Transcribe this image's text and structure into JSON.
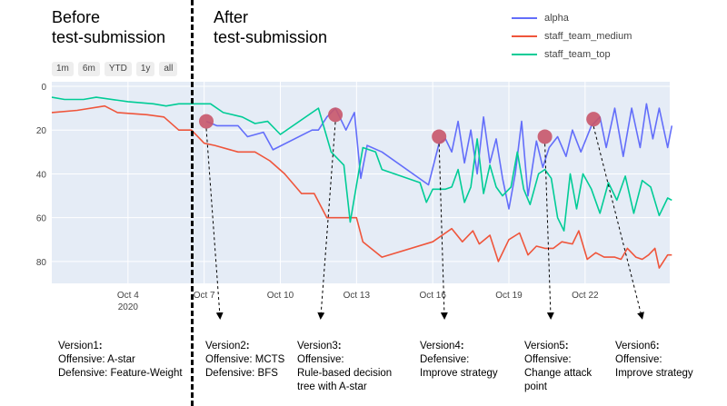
{
  "header": {
    "before": "Before\ntest-submission",
    "after": "After\ntest-submission"
  },
  "range_buttons": [
    "1m",
    "6m",
    "YTD",
    "1y",
    "all"
  ],
  "legend": [
    {
      "name": "alpha",
      "color": "#636efa"
    },
    {
      "name": "staff_team_medium",
      "color": "#ef553b"
    },
    {
      "name": "staff_team_top",
      "color": "#00cc96"
    }
  ],
  "chart_data": {
    "type": "line",
    "title": "",
    "xlabel": "",
    "ylabel": "",
    "yaxis_reversed": true,
    "ylim": [
      0,
      90
    ],
    "xlim": [
      "2020-10-01",
      "2020-10-25"
    ],
    "xticks": [
      {
        "date": "2020-10-04",
        "label": "Oct 4",
        "sublabel": "2020"
      },
      {
        "date": "2020-10-07",
        "label": "Oct 7"
      },
      {
        "date": "2020-10-10",
        "label": "Oct 10"
      },
      {
        "date": "2020-10-13",
        "label": "Oct 13"
      },
      {
        "date": "2020-10-16",
        "label": "Oct 16"
      },
      {
        "date": "2020-10-19",
        "label": "Oct 19"
      },
      {
        "date": "2020-10-22",
        "label": "Oct 22"
      }
    ],
    "yticks": [
      0,
      20,
      40,
      60,
      80
    ],
    "grid": true,
    "legend_position": "top-right",
    "series": [
      {
        "name": "alpha",
        "color": "#636efa",
        "points": [
          [
            "2020-10-07 02:00",
            16
          ],
          [
            "2020-10-07 12:00",
            18
          ],
          [
            "2020-10-08 08:00",
            18
          ],
          [
            "2020-10-08 17:00",
            23
          ],
          [
            "2020-10-09 08:00",
            21
          ],
          [
            "2020-10-09 17:00",
            29
          ],
          [
            "2020-10-11 06:00",
            20
          ],
          [
            "2020-10-11 12:00",
            20
          ],
          [
            "2020-10-11 20:00",
            14
          ],
          [
            "2020-10-12 04:00",
            10
          ],
          [
            "2020-10-12 14:00",
            20
          ],
          [
            "2020-10-12 22:00",
            12
          ],
          [
            "2020-10-13 04:00",
            42
          ],
          [
            "2020-10-13 10:00",
            27
          ],
          [
            "2020-10-14 00:00",
            30
          ],
          [
            "2020-10-15 20:00",
            45
          ],
          [
            "2020-10-16 06:00",
            26
          ],
          [
            "2020-10-16 12:00",
            24
          ],
          [
            "2020-10-16 18:00",
            30
          ],
          [
            "2020-10-17 00:00",
            16
          ],
          [
            "2020-10-17 06:00",
            35
          ],
          [
            "2020-10-17 12:00",
            20
          ],
          [
            "2020-10-17 18:00",
            40
          ],
          [
            "2020-10-18 00:00",
            14
          ],
          [
            "2020-10-18 06:00",
            35
          ],
          [
            "2020-10-18 12:00",
            24
          ],
          [
            "2020-10-18 18:00",
            42
          ],
          [
            "2020-10-19 00:00",
            56
          ],
          [
            "2020-10-19 06:00",
            40
          ],
          [
            "2020-10-19 12:00",
            16
          ],
          [
            "2020-10-19 18:00",
            50
          ],
          [
            "2020-10-20 02:00",
            25
          ],
          [
            "2020-10-20 08:00",
            37
          ],
          [
            "2020-10-20 14:00",
            28
          ],
          [
            "2020-10-20 22:00",
            23
          ],
          [
            "2020-10-21 06:00",
            32
          ],
          [
            "2020-10-21 12:00",
            20
          ],
          [
            "2020-10-21 20:00",
            30
          ],
          [
            "2020-10-22 06:00",
            18
          ],
          [
            "2020-10-22 14:00",
            14
          ],
          [
            "2020-10-22 20:00",
            28
          ],
          [
            "2020-10-23 04:00",
            10
          ],
          [
            "2020-10-23 12:00",
            32
          ],
          [
            "2020-10-23 20:00",
            10
          ],
          [
            "2020-10-24 04:00",
            28
          ],
          [
            "2020-10-24 10:00",
            8
          ],
          [
            "2020-10-24 16:00",
            24
          ],
          [
            "2020-10-24 22:00",
            10
          ],
          [
            "2020-10-25 06:00",
            28
          ],
          [
            "2020-10-25 10:00",
            18
          ]
        ]
      },
      {
        "name": "staff_team_medium",
        "color": "#ef553b",
        "points": [
          [
            "2020-10-01 00:00",
            12
          ],
          [
            "2020-10-02 00:00",
            11
          ],
          [
            "2020-10-03 02:00",
            9
          ],
          [
            "2020-10-03 14:00",
            12
          ],
          [
            "2020-10-04 18:00",
            13
          ],
          [
            "2020-10-05 10:00",
            14
          ],
          [
            "2020-10-06 00:00",
            20
          ],
          [
            "2020-10-06 12:00",
            20
          ],
          [
            "2020-10-07 00:00",
            26
          ],
          [
            "2020-10-07 10:00",
            27
          ],
          [
            "2020-10-08 08:00",
            30
          ],
          [
            "2020-10-09 00:00",
            30
          ],
          [
            "2020-10-09 14:00",
            34
          ],
          [
            "2020-10-10 04:00",
            40
          ],
          [
            "2020-10-10 20:00",
            49
          ],
          [
            "2020-10-11 08:00",
            49
          ],
          [
            "2020-10-11 20:00",
            60
          ],
          [
            "2020-10-12 12:00",
            60
          ],
          [
            "2020-10-13 00:00",
            60
          ],
          [
            "2020-10-13 06:00",
            71
          ],
          [
            "2020-10-14 00:00",
            78
          ],
          [
            "2020-10-16 00:00",
            71
          ],
          [
            "2020-10-16 18:00",
            65
          ],
          [
            "2020-10-17 04:00",
            71
          ],
          [
            "2020-10-17 14:00",
            66
          ],
          [
            "2020-10-17 20:00",
            72
          ],
          [
            "2020-10-18 06:00",
            68
          ],
          [
            "2020-10-18 14:00",
            80
          ],
          [
            "2020-10-19 00:00",
            70
          ],
          [
            "2020-10-19 10:00",
            67
          ],
          [
            "2020-10-19 18:00",
            77
          ],
          [
            "2020-10-20 02:00",
            73
          ],
          [
            "2020-10-20 10:00",
            74
          ],
          [
            "2020-10-20 18:00",
            74
          ],
          [
            "2020-10-21 02:00",
            71
          ],
          [
            "2020-10-21 12:00",
            72
          ],
          [
            "2020-10-21 18:00",
            66
          ],
          [
            "2020-10-22 02:00",
            79
          ],
          [
            "2020-10-22 10:00",
            76
          ],
          [
            "2020-10-22 18:00",
            78
          ],
          [
            "2020-10-23 04:00",
            78
          ],
          [
            "2020-10-23 10:00",
            79
          ],
          [
            "2020-10-23 16:00",
            74
          ],
          [
            "2020-10-24 00:00",
            78
          ],
          [
            "2020-10-24 06:00",
            79
          ],
          [
            "2020-10-24 12:00",
            77
          ],
          [
            "2020-10-24 18:00",
            74
          ],
          [
            "2020-10-24 22:00",
            83
          ],
          [
            "2020-10-25 06:00",
            77
          ],
          [
            "2020-10-25 10:00",
            77
          ]
        ]
      },
      {
        "name": "staff_team_top",
        "color": "#00cc96",
        "points": [
          [
            "2020-10-01 00:00",
            5
          ],
          [
            "2020-10-01 12:00",
            6
          ],
          [
            "2020-10-02 06:00",
            6
          ],
          [
            "2020-10-02 18:00",
            5
          ],
          [
            "2020-10-04 00:00",
            7
          ],
          [
            "2020-10-05 00:00",
            8
          ],
          [
            "2020-10-05 12:00",
            9
          ],
          [
            "2020-10-06 00:00",
            8
          ],
          [
            "2020-10-07 06:00",
            8
          ],
          [
            "2020-10-07 18:00",
            12
          ],
          [
            "2020-10-08 12:00",
            14
          ],
          [
            "2020-10-09 00:00",
            17
          ],
          [
            "2020-10-09 12:00",
            16
          ],
          [
            "2020-10-10 00:00",
            22
          ],
          [
            "2020-10-11 12:00",
            10
          ],
          [
            "2020-10-12 00:00",
            30
          ],
          [
            "2020-10-12 12:00",
            36
          ],
          [
            "2020-10-12 18:00",
            62
          ],
          [
            "2020-10-13 06:00",
            28
          ],
          [
            "2020-10-13 18:00",
            30
          ],
          [
            "2020-10-14 00:00",
            38
          ],
          [
            "2020-10-15 12:00",
            44
          ],
          [
            "2020-10-15 18:00",
            53
          ],
          [
            "2020-10-16 00:00",
            47
          ],
          [
            "2020-10-16 12:00",
            47
          ],
          [
            "2020-10-16 18:00",
            46
          ],
          [
            "2020-10-17 00:00",
            38
          ],
          [
            "2020-10-17 06:00",
            53
          ],
          [
            "2020-10-17 12:00",
            46
          ],
          [
            "2020-10-17 18:00",
            24
          ],
          [
            "2020-10-18 00:00",
            49
          ],
          [
            "2020-10-18 06:00",
            36
          ],
          [
            "2020-10-18 12:00",
            46
          ],
          [
            "2020-10-18 18:00",
            50
          ],
          [
            "2020-10-19 02:00",
            46
          ],
          [
            "2020-10-19 08:00",
            30
          ],
          [
            "2020-10-19 14:00",
            47
          ],
          [
            "2020-10-19 20:00",
            54
          ],
          [
            "2020-10-20 04:00",
            40
          ],
          [
            "2020-10-20 10:00",
            38
          ],
          [
            "2020-10-20 16:00",
            42
          ],
          [
            "2020-10-20 22:00",
            60
          ],
          [
            "2020-10-21 04:00",
            66
          ],
          [
            "2020-10-21 10:00",
            40
          ],
          [
            "2020-10-21 16:00",
            56
          ],
          [
            "2020-10-21 22:00",
            40
          ],
          [
            "2020-10-22 06:00",
            47
          ],
          [
            "2020-10-22 14:00",
            58
          ],
          [
            "2020-10-22 22:00",
            44
          ],
          [
            "2020-10-23 06:00",
            52
          ],
          [
            "2020-10-23 14:00",
            41
          ],
          [
            "2020-10-23 22:00",
            58
          ],
          [
            "2020-10-24 06:00",
            43
          ],
          [
            "2020-10-24 14:00",
            46
          ],
          [
            "2020-10-24 22:00",
            59
          ],
          [
            "2020-10-25 06:00",
            51
          ],
          [
            "2020-10-25 10:00",
            52
          ]
        ]
      }
    ],
    "markers": [
      {
        "date": "2020-10-07 02:00",
        "y": 16
      },
      {
        "date": "2020-10-12 04:00",
        "y": 13
      },
      {
        "date": "2020-10-16 06:00",
        "y": 23
      },
      {
        "date": "2020-10-20 10:00",
        "y": 23
      },
      {
        "date": "2020-10-22 08:00",
        "y": 15
      }
    ],
    "marker_color": "#c8576a"
  },
  "versions": [
    {
      "title": "Version1",
      "body": "Offensive: A-star\nDefensive: Feature-Weight"
    },
    {
      "title": "Version2",
      "body": "Offensive: MCTS\nDefensive: BFS"
    },
    {
      "title": "Version3",
      "body": "Offensive:\nRule-based decision\ntree with A-star"
    },
    {
      "title": "Version4",
      "body": "Defensive:\nImprove strategy"
    },
    {
      "title": "Version5",
      "body": "Offensive:\nChange attack\npoint"
    },
    {
      "title": "Version6",
      "body": "Offensive:\nImprove strategy"
    }
  ]
}
